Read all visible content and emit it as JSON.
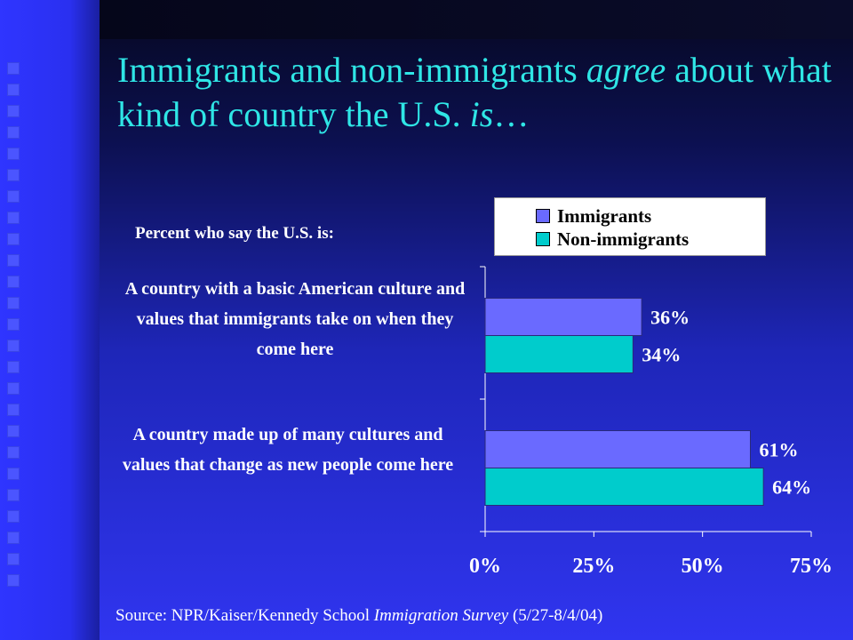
{
  "slide": {
    "title_part1": "Immigrants and non-immigrants ",
    "title_em1": "agree",
    "title_part2": " about what kind of country the U.S. ",
    "title_em2": "is",
    "title_part3": "…",
    "subtitle": "Percent who say the U.S. is:",
    "source_prefix": "Source: NPR/Kaiser/Kennedy School ",
    "source_em": "Immigration Survey",
    "source_suffix": " (5/27-8/4/04)"
  },
  "colors": {
    "title": "#2fe6e6",
    "immigrants": "#6a6aff",
    "non_immigrants": "#00cccc",
    "text": "#ffffff"
  },
  "chart_data": {
    "type": "bar",
    "orientation": "horizontal",
    "categories": [
      "A country with a basic American culture and values that immigrants take on when they come here",
      "A country made up of many cultures and values that change as new people come here"
    ],
    "series": [
      {
        "name": "Immigrants",
        "values": [
          36,
          61
        ],
        "labels": [
          "36%",
          "61%"
        ]
      },
      {
        "name": "Non-immigrants",
        "values": [
          34,
          64
        ],
        "labels": [
          "34%",
          "64%"
        ]
      }
    ],
    "xlim": [
      0,
      75
    ],
    "xticks": [
      0,
      25,
      50,
      75
    ],
    "xtick_labels": [
      "0%",
      "25%",
      "50%",
      "75%"
    ],
    "legend_position": "top-right",
    "grid": false
  }
}
